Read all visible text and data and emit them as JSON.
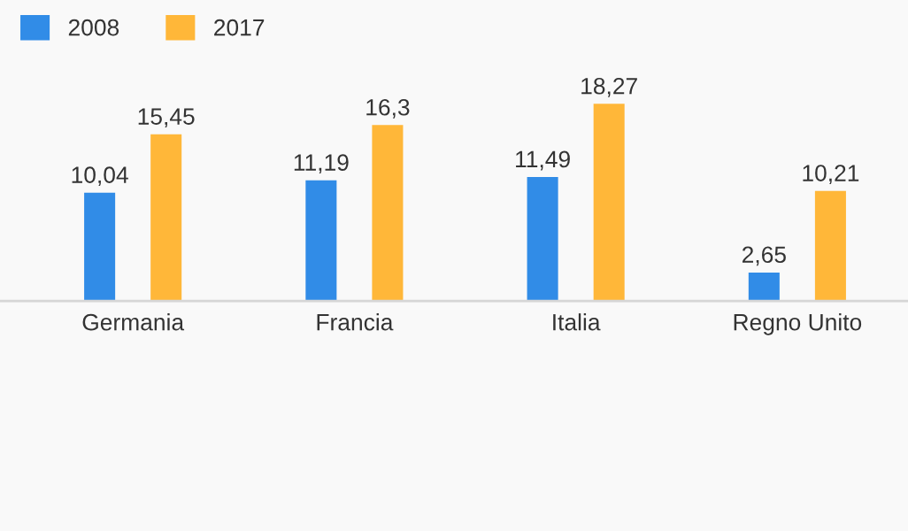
{
  "chart_data": {
    "type": "bar",
    "categories": [
      "Germania",
      "Francia",
      "Italia",
      "Regno Unito"
    ],
    "series": [
      {
        "name": "2008",
        "color": "#318ce7",
        "values": [
          10.04,
          11.19,
          11.49,
          2.65
        ],
        "value_labels": [
          "10,04",
          "11,19",
          "11,49",
          "2,65"
        ]
      },
      {
        "name": "2017",
        "color": "#ffb739",
        "values": [
          15.45,
          16.3,
          18.27,
          10.21
        ],
        "value_labels": [
          "15,45",
          "16,3",
          "18,27",
          "10,21"
        ]
      }
    ],
    "legend": "top left",
    "grid": false
  }
}
